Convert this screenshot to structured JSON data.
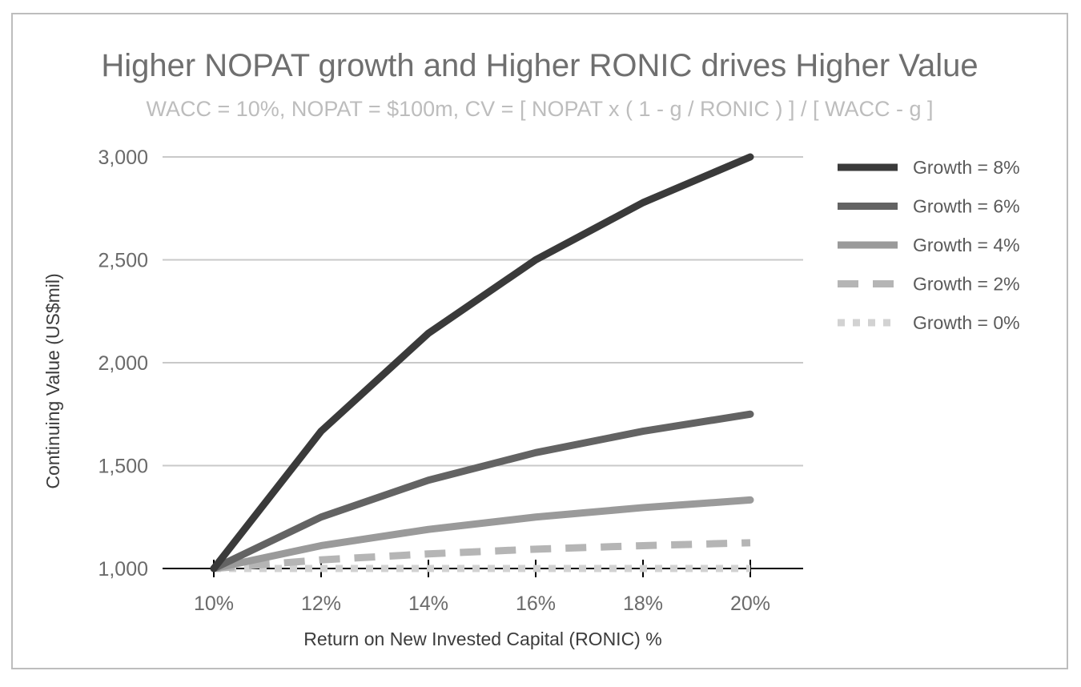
{
  "chart_data": {
    "type": "line",
    "title": "Higher NOPAT growth and Higher RONIC drives Higher Value",
    "subtitle": "WACC = 10%, NOPAT = $100m, CV = [ NOPAT x ( 1 - g / RONIC ) ] / [ WACC - g ]",
    "xlabel": "Return on New Invested Capital (RONIC) %",
    "ylabel": "Continuing Value (US$mil)",
    "categories": [
      "10%",
      "12%",
      "14%",
      "16%",
      "18%",
      "20%"
    ],
    "ylim": [
      1000,
      3000
    ],
    "yticks": [
      1000,
      1500,
      2000,
      2500,
      3000
    ],
    "ytick_labels": [
      "1,000",
      "1,500",
      "2,000",
      "2,500",
      "3,000"
    ],
    "grid": true,
    "legend_position": "right",
    "series": [
      {
        "name": "Growth = 8%",
        "values": [
          1000,
          1667,
          2143,
          2500,
          2778,
          3000
        ],
        "color": "#3a3a3a",
        "dash": "solid"
      },
      {
        "name": "Growth = 6%",
        "values": [
          1000,
          1250,
          1429,
          1563,
          1667,
          1750
        ],
        "color": "#636363",
        "dash": "solid"
      },
      {
        "name": "Growth = 4%",
        "values": [
          1000,
          1111,
          1190,
          1250,
          1296,
          1333
        ],
        "color": "#9a9a9a",
        "dash": "solid"
      },
      {
        "name": "Growth = 2%",
        "values": [
          1000,
          1042,
          1071,
          1094,
          1111,
          1125
        ],
        "color": "#b5b5b5",
        "dash": "dashed"
      },
      {
        "name": "Growth = 0%",
        "values": [
          1000,
          1000,
          1000,
          1000,
          1000,
          1000
        ],
        "color": "#d2d2d2",
        "dash": "dotted"
      }
    ]
  }
}
